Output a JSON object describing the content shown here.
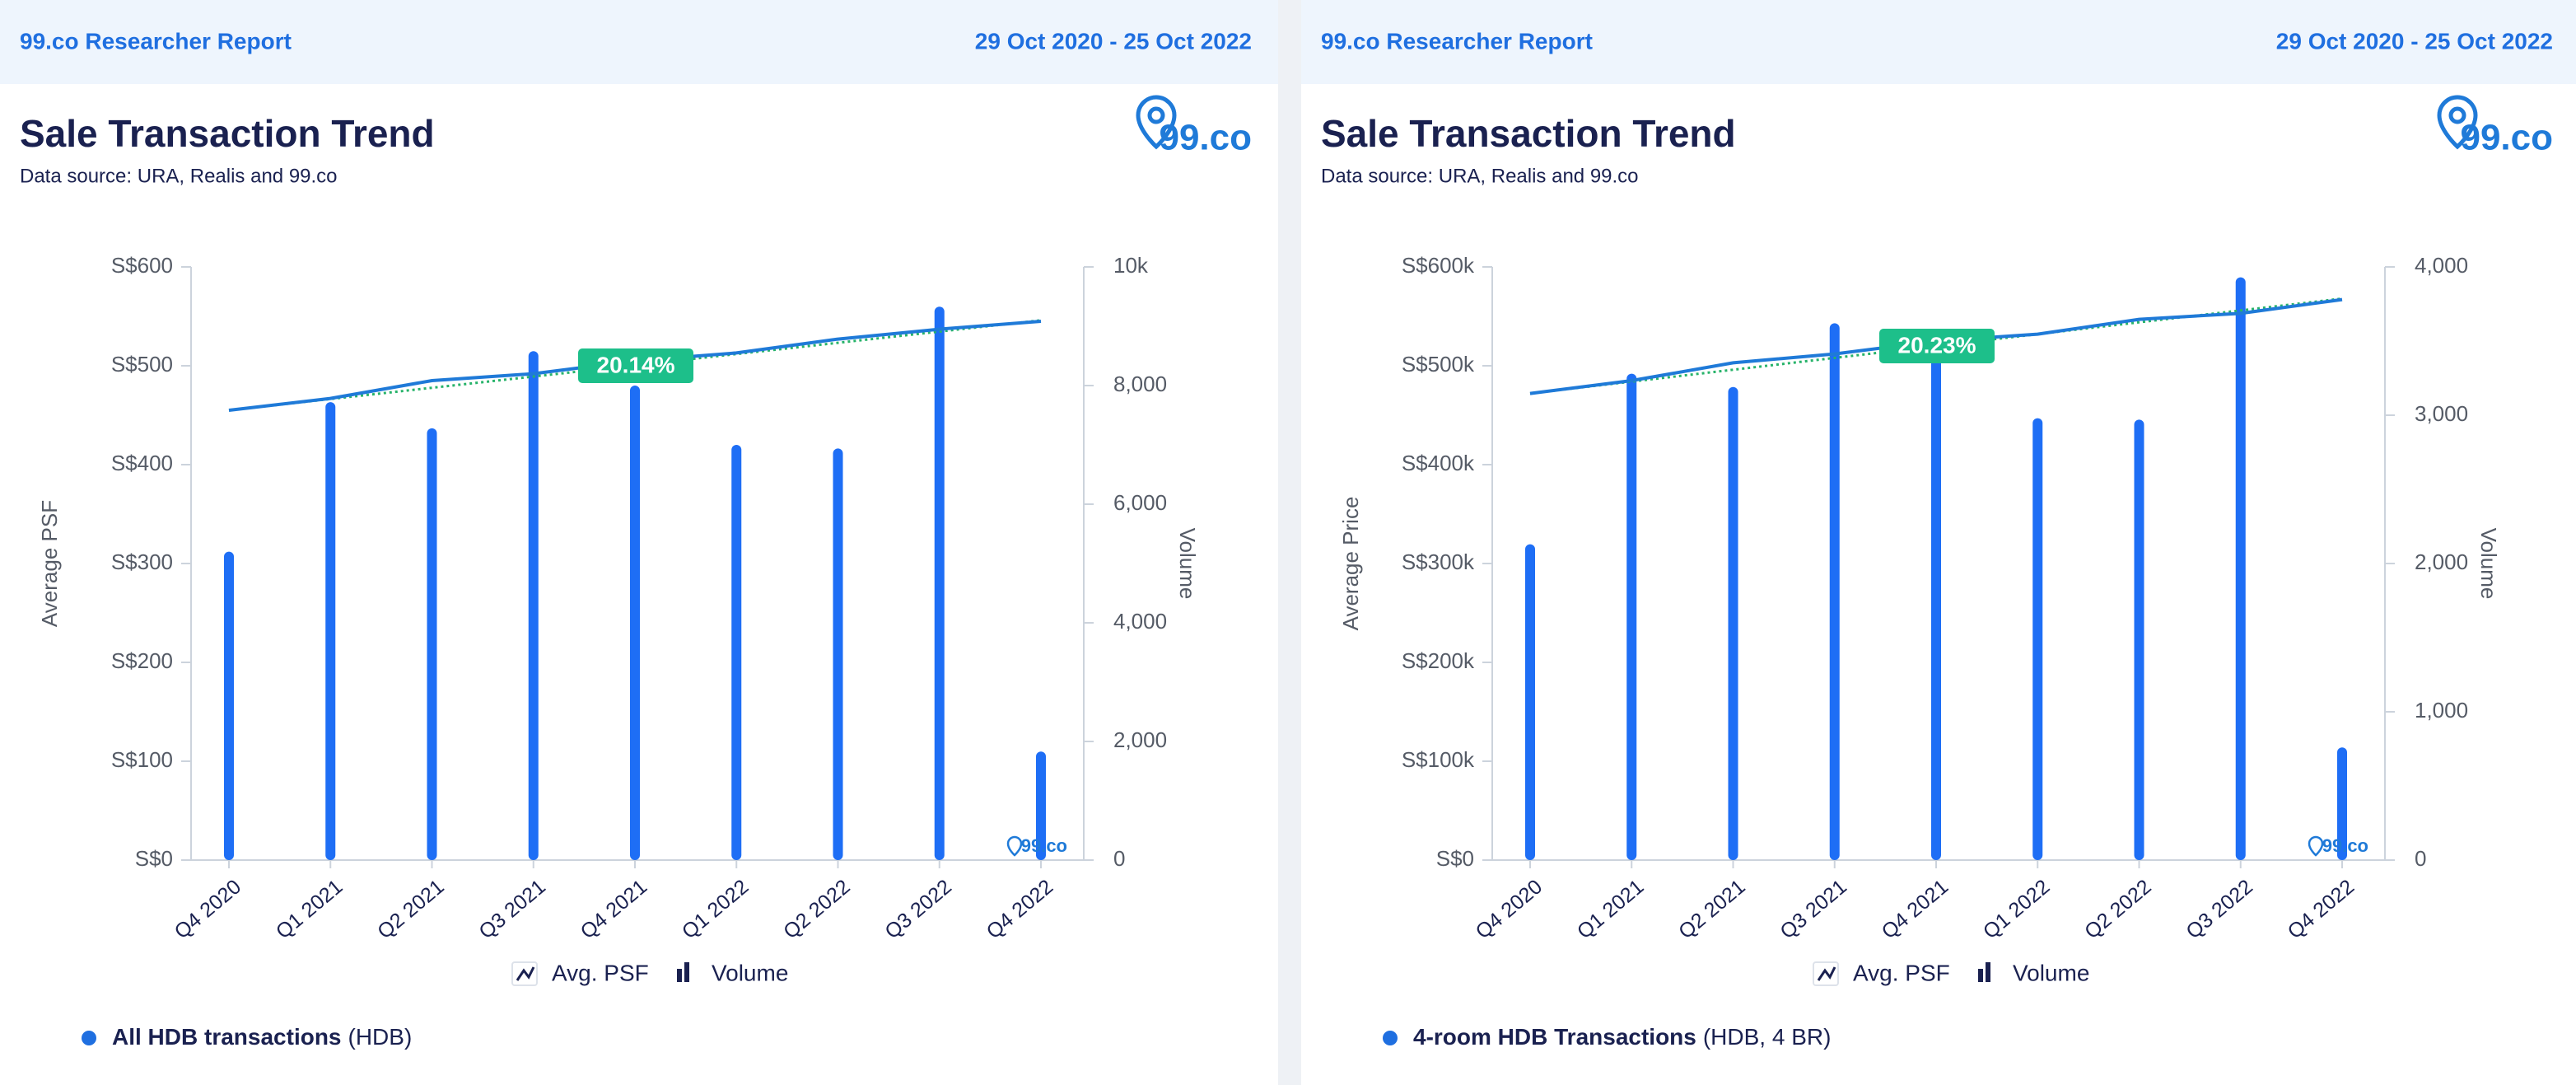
{
  "panels": [
    {
      "report": "99.co Researcher Report",
      "dates": "29 Oct 2020 - 25 Oct 2022",
      "title": "Sale Transaction Trend",
      "source": "Data source: URA, Realis and 99.co",
      "logo": "99.co",
      "watermark": "99.co",
      "footer": {
        "bold": "All HDB transactions",
        "rest": "(HDB)"
      }
    },
    {
      "report": "99.co Researcher Report",
      "dates": "29 Oct 2020 - 25 Oct 2022",
      "title": "Sale Transaction Trend",
      "source": "Data source: URA, Realis and 99.co",
      "logo": "99.co",
      "watermark": "99.co",
      "footer": {
        "bold": "4-room HDB Transactions",
        "rest": "(HDB, 4 BR)"
      }
    }
  ],
  "chart_data": [
    {
      "type": "bar_line",
      "ylabel": "Average PSF",
      "y2label": "Volume",
      "categories": [
        "Q4 2020",
        "Q1 2021",
        "Q2 2021",
        "Q3 2021",
        "Q4 2021",
        "Q1 2022",
        "Q2 2022",
        "Q3 2022",
        "Q4 2022"
      ],
      "series": [
        {
          "name": "Avg. PSF",
          "kind": "line",
          "axis": "y",
          "color": "#1f7ad8",
          "values": [
            455,
            467,
            485,
            492,
            505,
            513,
            527,
            537,
            545
          ]
        },
        {
          "name": "Volume",
          "kind": "bar",
          "axis": "y2",
          "color": "#1e6ef5",
          "values": [
            5200,
            7720,
            7280,
            8580,
            8000,
            7000,
            6940,
            9330,
            1830
          ]
        }
      ],
      "trendline": {
        "color": "#27b36a",
        "values": [
          455,
          546
        ]
      },
      "annotation": "20.14%",
      "ylim": [
        0,
        600
      ],
      "yticks": [
        {
          "value": 0,
          "label": "S$0"
        },
        {
          "value": 100,
          "label": "S$100"
        },
        {
          "value": 200,
          "label": "S$200"
        },
        {
          "value": 300,
          "label": "S$300"
        },
        {
          "value": 400,
          "label": "S$400"
        },
        {
          "value": 500,
          "label": "S$500"
        },
        {
          "value": 600,
          "label": "S$600"
        }
      ],
      "y2lim": [
        0,
        10000
      ],
      "y2ticks": [
        0,
        {
          "value": 2000,
          "label": "2,000"
        },
        {
          "value": 4000,
          "label": "4,000"
        },
        {
          "value": 6000,
          "label": "6,000"
        },
        {
          "value": 8000,
          "label": "8,000"
        },
        {
          "value": 10000,
          "label": "10k"
        }
      ]
    },
    {
      "type": "bar_line",
      "ylabel": "Average Price",
      "y2label": "Volume",
      "categories": [
        "Q4 2020",
        "Q1 2021",
        "Q2 2021",
        "Q3 2021",
        "Q4 2021",
        "Q1 2022",
        "Q2 2022",
        "Q3 2022",
        "Q4 2022"
      ],
      "series": [
        {
          "name": "Avg. PSF",
          "kind": "line",
          "axis": "y",
          "color": "#1f7ad8",
          "values": [
            472000,
            485000,
            503000,
            512000,
            525000,
            532000,
            547000,
            553000,
            567000
          ]
        },
        {
          "name": "Volume",
          "kind": "bar",
          "axis": "y2",
          "color": "#1e6ef5",
          "values": [
            2130,
            3280,
            3190,
            3620,
            3510,
            2980,
            2970,
            3930,
            760
          ]
        }
      ],
      "trendline": {
        "color": "#27b36a",
        "values": [
          472000,
          568000
        ]
      },
      "annotation": "20.23%",
      "ylim": [
        0,
        600000
      ],
      "yticks": [
        {
          "value": 0,
          "label": "S$0"
        },
        {
          "value": 100000,
          "label": "S$100k"
        },
        {
          "value": 200000,
          "label": "S$200k"
        },
        {
          "value": 300000,
          "label": "S$300k"
        },
        {
          "value": 400000,
          "label": "S$400k"
        },
        {
          "value": 500000,
          "label": "S$500k"
        },
        {
          "value": 600000,
          "label": "S$600k"
        }
      ],
      "y2lim": [
        0,
        4000
      ],
      "y2ticks": [
        0,
        {
          "value": 1000,
          "label": "1,000"
        },
        {
          "value": 2000,
          "label": "2,000"
        },
        {
          "value": 3000,
          "label": "3,000"
        },
        {
          "value": 4000,
          "label": "4,000"
        }
      ]
    }
  ]
}
